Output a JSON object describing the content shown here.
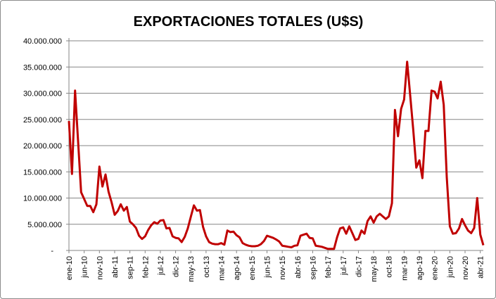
{
  "chart_data": {
    "type": "line",
    "title": "EXPORTACIONES TOTALES (U$S)",
    "xlabel": "",
    "ylabel": "",
    "ylim": [
      0,
      40000000
    ],
    "y_unit_note": "values in millions of U$S",
    "ytick_values": [
      0,
      5,
      10,
      15,
      20,
      25,
      30,
      35,
      40
    ],
    "ytick_labels": [
      "-",
      "5.000.000",
      "10.000.000",
      "15.000.000",
      "20.000.000",
      "25.000.000",
      "30.000.000",
      "35.000.000",
      "40.000.000"
    ],
    "xtick_every": 5,
    "xtick_labels": [
      "ene-10",
      "jun-10",
      "nov-10",
      "abr-11",
      "sep-11",
      "feb-12",
      "jul-12",
      "dic-12",
      "may-13",
      "oct-13",
      "mar-14",
      "ago-14",
      "ene-15",
      "jun-15",
      "nov-15",
      "abr-16",
      "sep-16",
      "feb-17",
      "jul-17",
      "dic-17",
      "may-18",
      "oct-18",
      "mar-19",
      "ago-19",
      "ene-20",
      "jun-20",
      "nov-20",
      "abr-21"
    ],
    "grid": true,
    "legend": "none",
    "series": [
      {
        "name": "Exportaciones totales",
        "color": "#c00000",
        "values": [
          24.7,
          14.6,
          30.5,
          20.8,
          11.1,
          9.8,
          8.5,
          8.5,
          7.3,
          8.8,
          16.0,
          12.2,
          14.5,
          11.2,
          9.2,
          6.8,
          7.5,
          8.8,
          7.6,
          8.3,
          5.5,
          5.0,
          4.3,
          2.8,
          2.2,
          2.7,
          3.9,
          4.8,
          5.4,
          5.1,
          5.7,
          5.8,
          4.2,
          4.3,
          2.7,
          2.4,
          2.3,
          1.6,
          2.6,
          4.2,
          6.4,
          8.6,
          7.6,
          7.7,
          4.5,
          2.7,
          1.6,
          1.3,
          1.2,
          1.2,
          1.4,
          1.1,
          3.8,
          3.5,
          3.6,
          2.9,
          2.5,
          1.4,
          1.1,
          0.9,
          0.8,
          0.8,
          0.9,
          1.2,
          1.8,
          2.8,
          2.6,
          2.4,
          2.1,
          1.7,
          0.9,
          0.8,
          0.7,
          0.6,
          0.9,
          1.0,
          2.8,
          3.0,
          3.2,
          2.4,
          2.3,
          0.9,
          0.8,
          0.7,
          0.5,
          0.3,
          0.3,
          0.3,
          2.5,
          4.2,
          4.4,
          3.2,
          4.6,
          3.3,
          2.0,
          2.2,
          3.8,
          3.2,
          5.6,
          6.5,
          5.3,
          6.5,
          7.0,
          6.5,
          6.0,
          6.5,
          9.0,
          26.8,
          21.8,
          27.0,
          28.8,
          36.0,
          29.5,
          23.0,
          15.8,
          17.2,
          13.8,
          22.8,
          22.8,
          30.5,
          30.3,
          29.0,
          32.2,
          27.8,
          14.0,
          4.6,
          3.2,
          3.3,
          4.2,
          6.0,
          4.8,
          3.8,
          3.3,
          4.3,
          10.0,
          3.0,
          1.0
        ]
      }
    ]
  }
}
